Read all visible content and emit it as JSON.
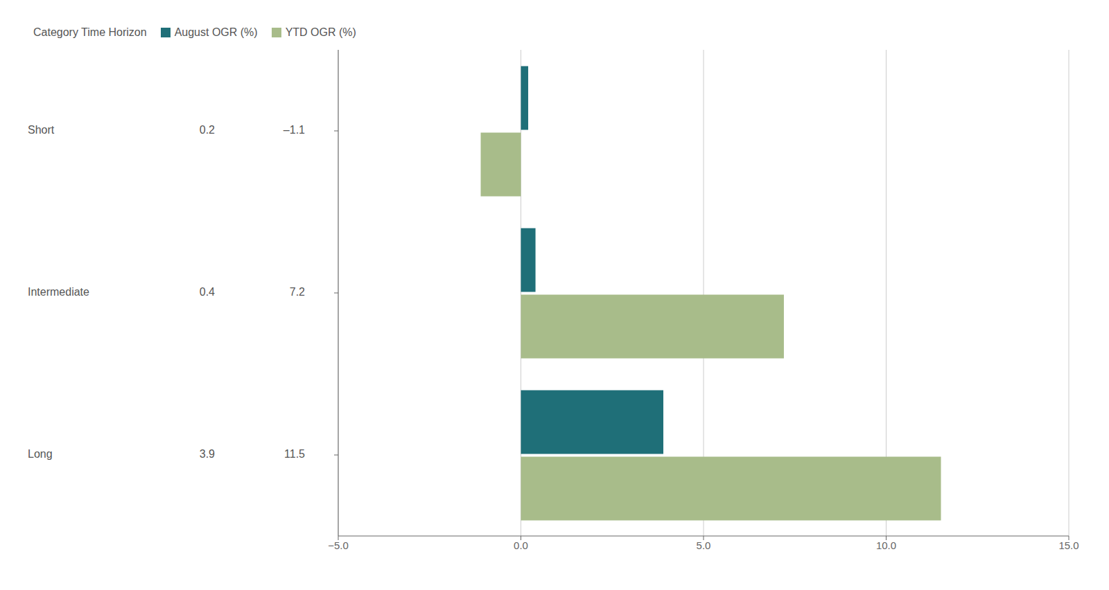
{
  "chart_data": {
    "type": "bar",
    "orientation": "horizontal",
    "categories": [
      "Short",
      "Intermediate",
      "Long"
    ],
    "series": [
      {
        "name": "August OGR (%)",
        "color": "#1f6f78",
        "values": [
          0.2,
          0.4,
          3.9
        ],
        "value_labels": [
          "0.2",
          "0.4",
          "3.9"
        ]
      },
      {
        "name": "YTD OGR (%)",
        "color": "#a8bc8a",
        "values": [
          -1.1,
          7.2,
          11.5
        ],
        "value_labels": [
          "–1.1",
          "7.2",
          "11.5"
        ]
      }
    ],
    "legend_title": "Category Time Horizon",
    "legend": "top",
    "xlim": [
      -5.0,
      15.0
    ],
    "xticks": [
      {
        "value": -5.0,
        "label": "−5.0"
      },
      {
        "value": 0.0,
        "label": "0.0"
      },
      {
        "value": 5.0,
        "label": "5.0"
      },
      {
        "value": 10.0,
        "label": "10.0"
      },
      {
        "value": 15.0,
        "label": "15.0"
      }
    ],
    "grid": true
  }
}
